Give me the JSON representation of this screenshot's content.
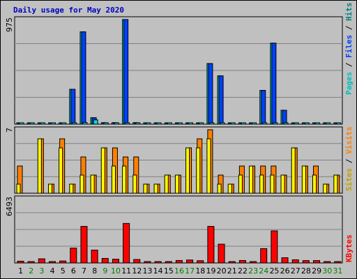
{
  "chart_data": [
    {
      "type": "bar",
      "title": "Daily usage for May 2020",
      "panel": "hits-files-pages",
      "ymax_label": "975",
      "ylim": [
        0,
        975
      ],
      "categories": [
        "1",
        "2",
        "3",
        "4",
        "5",
        "6",
        "7",
        "8",
        "9",
        "10",
        "11",
        "12",
        "13",
        "14",
        "15",
        "16",
        "17",
        "18",
        "19",
        "20",
        "21",
        "22",
        "23",
        "24",
        "25",
        "26",
        "27",
        "28",
        "29",
        "30",
        "31"
      ],
      "weekend_days": [
        "2",
        "3",
        "9",
        "10",
        "16",
        "17",
        "23",
        "24",
        "30",
        "31"
      ],
      "series": [
        {
          "name": "Hits",
          "color": "#00c0c0",
          "values": [
            5,
            10,
            8,
            6,
            8,
            325,
            860,
            60,
            14,
            14,
            975,
            14,
            10,
            7,
            7,
            10,
            10,
            10,
            565,
            450,
            9,
            9,
            4,
            315,
            755,
            130,
            4,
            4,
            4,
            4,
            4
          ]
        },
        {
          "name": "Files",
          "color": "#0040ff",
          "values": [
            5,
            10,
            8,
            6,
            8,
            325,
            860,
            60,
            14,
            14,
            975,
            14,
            10,
            7,
            7,
            10,
            10,
            10,
            565,
            450,
            9,
            9,
            4,
            315,
            755,
            130,
            4,
            4,
            4,
            4,
            4
          ]
        },
        {
          "name": "Pages",
          "color": "#00e0e0",
          "values": [
            4,
            6,
            5,
            4,
            5,
            6,
            15,
            40,
            12,
            10,
            12,
            7,
            6,
            5,
            5,
            6,
            12,
            7,
            9,
            8,
            6,
            6,
            3,
            7,
            9,
            8,
            3,
            3,
            3,
            3,
            3
          ]
        }
      ]
    },
    {
      "type": "bar",
      "panel": "visits-sites",
      "ymax_label": "7",
      "ylim": [
        0,
        7
      ],
      "categories": [
        "1",
        "2",
        "3",
        "4",
        "5",
        "6",
        "7",
        "8",
        "9",
        "10",
        "11",
        "12",
        "13",
        "14",
        "15",
        "16",
        "17",
        "18",
        "19",
        "20",
        "21",
        "22",
        "23",
        "24",
        "25",
        "26",
        "27",
        "28",
        "29",
        "30",
        "31"
      ],
      "series": [
        {
          "name": "Visits",
          "color": "#ff8000",
          "values": [
            3,
            0,
            6,
            1,
            6,
            1,
            4,
            2,
            5,
            5,
            4,
            4,
            1,
            1,
            2,
            2,
            5,
            6,
            7,
            2,
            1,
            3,
            3,
            3,
            3,
            2,
            5,
            3,
            3,
            1,
            2
          ]
        },
        {
          "name": "Sites",
          "color": "#ffff00",
          "values": [
            1,
            0,
            6,
            1,
            5,
            1,
            2,
            2,
            5,
            3,
            3,
            2,
            1,
            1,
            2,
            2,
            5,
            5,
            6,
            1,
            1,
            2,
            3,
            2,
            2,
            2,
            5,
            3,
            2,
            1,
            2
          ]
        }
      ]
    },
    {
      "type": "bar",
      "panel": "kbytes",
      "ymax_label": "6493",
      "ylim": [
        0,
        6493
      ],
      "categories": [
        "1",
        "2",
        "3",
        "4",
        "5",
        "6",
        "7",
        "8",
        "9",
        "10",
        "11",
        "12",
        "13",
        "14",
        "15",
        "16",
        "17",
        "18",
        "19",
        "20",
        "21",
        "22",
        "23",
        "24",
        "25",
        "26",
        "27",
        "28",
        "29",
        "30",
        "31"
      ],
      "series": [
        {
          "name": "KBytes",
          "color": "#ff0000",
          "values": [
            180,
            40,
            420,
            60,
            200,
            1500,
            3700,
            1300,
            460,
            380,
            4000,
            350,
            40,
            40,
            90,
            250,
            300,
            230,
            3700,
            1900,
            50,
            250,
            40,
            1450,
            3250,
            530,
            320,
            240,
            240,
            40,
            40
          ]
        }
      ]
    }
  ],
  "right_labels": {
    "pages": "Pages",
    "files": "Files",
    "hits": "Hits",
    "sep": "/",
    "sites": "Sites",
    "visits": "Visits",
    "kbytes": "KBytes"
  },
  "colors": {
    "pages": "#00c0c0",
    "files": "#0040ff",
    "hits": "#008080",
    "sites": "#c0a000",
    "visits": "#ff8000",
    "kbytes": "#ff0000",
    "title": "#0000c0",
    "weekend_label": "#008000"
  }
}
